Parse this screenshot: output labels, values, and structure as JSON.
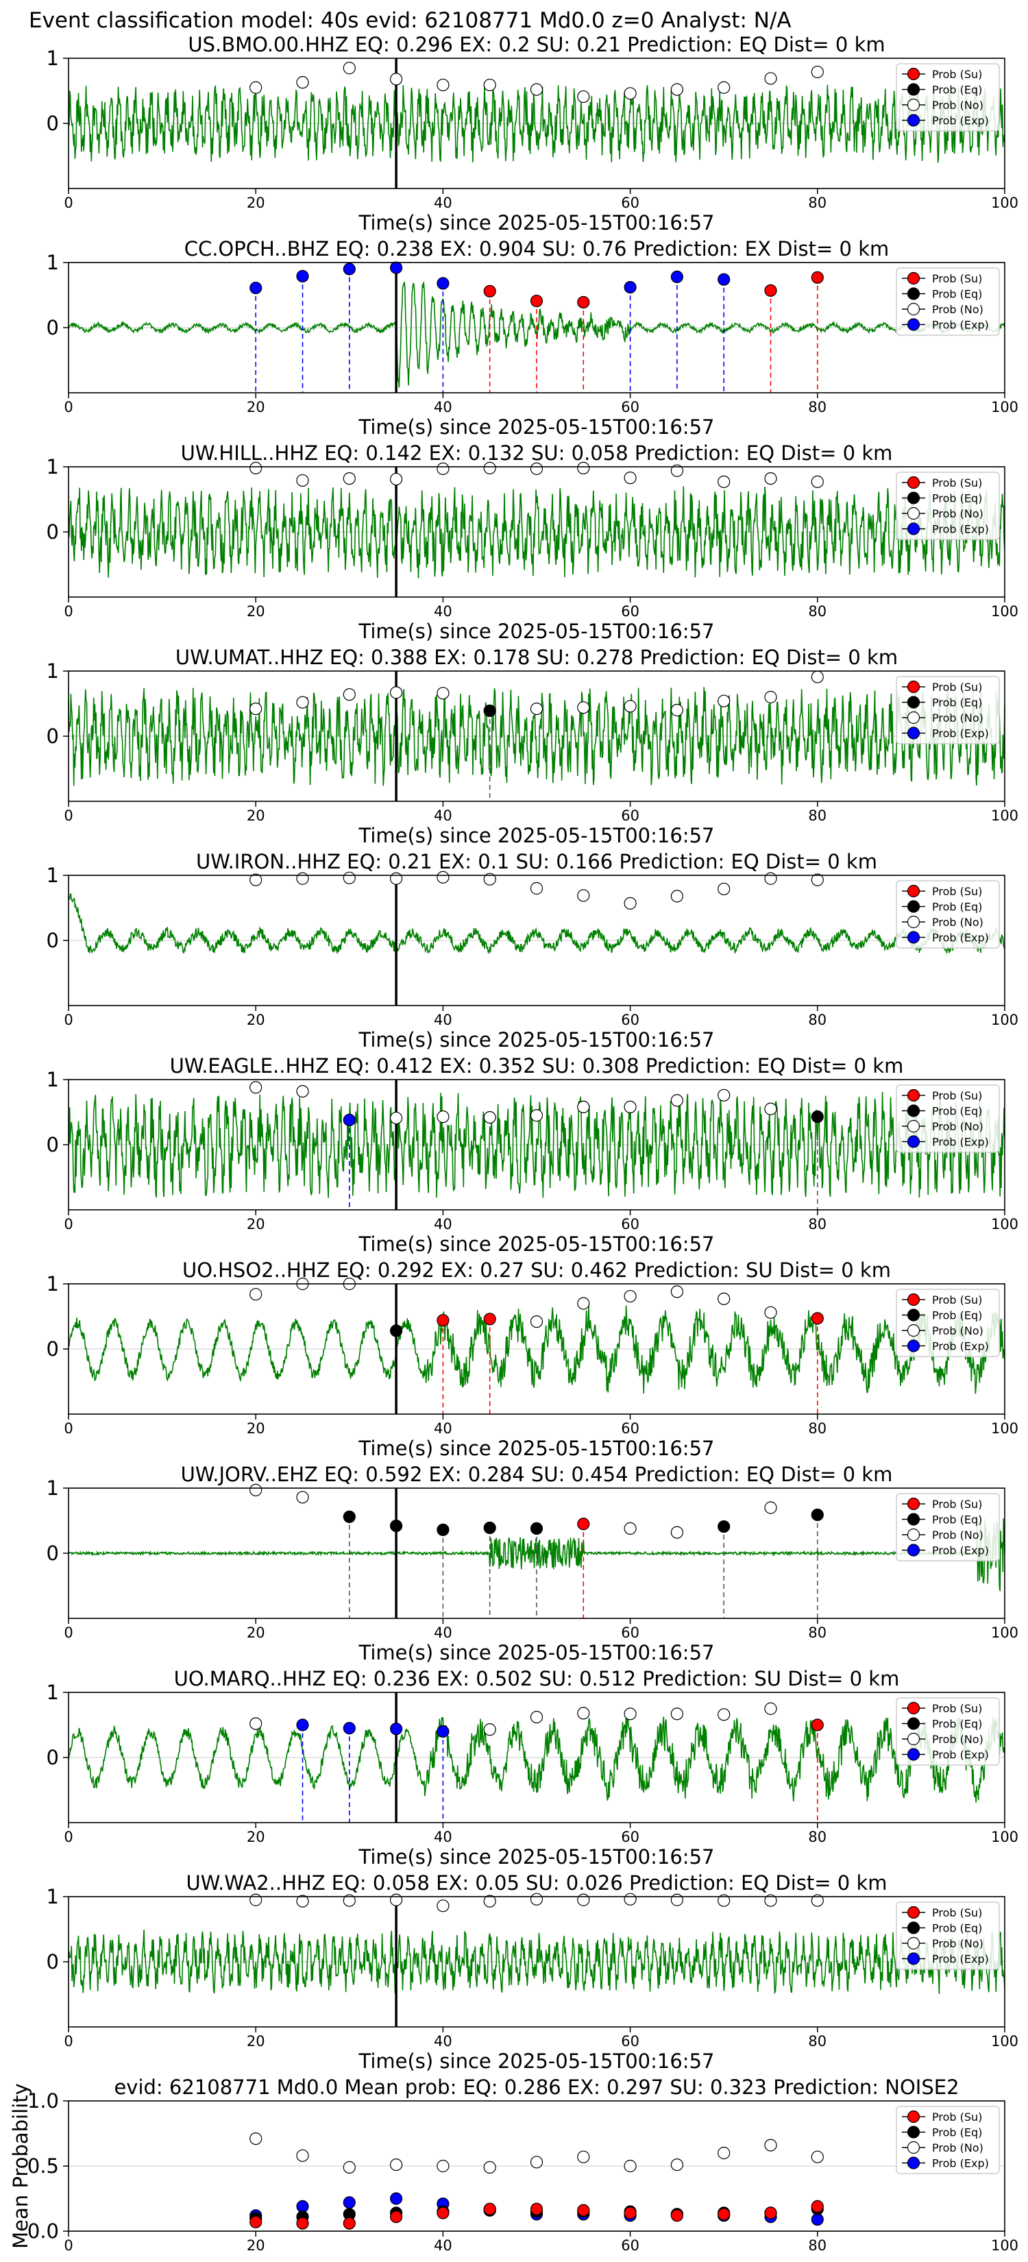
{
  "figure_title": "Event classification model: 40s evid: 62108771 Md0.0 z=0 Analyst: N/A",
  "legend_labels": [
    "Prob (Su)",
    "Prob (Eq)",
    "Prob (No)",
    "Prob (Exp)"
  ],
  "colors": {
    "trace": "#008000",
    "su": "#ff0000",
    "eq": "#000000",
    "no": "#ffffff",
    "exp": "#0000ff",
    "grid": "#dddddd",
    "pick": "#000000"
  },
  "chart_data": [
    {
      "type": "line",
      "station": "US.BMO.00.HHZ",
      "title": "US.BMO.00.HHZ   EQ: 0.296  EX: 0.2  SU: 0.21   Prediction: EQ    Dist= 0 km",
      "xlabel": "Time(s) since 2025-05-15T00:16:57",
      "xlim": [
        0,
        100
      ],
      "ylim": [
        -1,
        1
      ],
      "xticks": [
        0,
        20,
        40,
        60,
        80,
        100
      ],
      "yticks": [
        1,
        0
      ],
      "pick_time": 35,
      "times": [
        20,
        25,
        30,
        35,
        40,
        45,
        50,
        55,
        60,
        65,
        70,
        75,
        80
      ],
      "cls": [
        "no",
        "no",
        "no",
        "no",
        "no",
        "no",
        "no",
        "no",
        "no",
        "no",
        "no",
        "no",
        "no"
      ],
      "probs": [
        0.55,
        0.63,
        0.85,
        0.68,
        0.59,
        0.59,
        0.52,
        0.41,
        0.46,
        0.52,
        0.55,
        0.69,
        0.79
      ],
      "trace_style": "noisy",
      "amp": 0.55,
      "seed": 11
    },
    {
      "type": "line",
      "station": "CC.OPCH..BHZ",
      "title": "CC.OPCH..BHZ   EQ: 0.238  EX: 0.904  SU: 0.76    Prediction: EX    Dist= 0 km",
      "xlabel": "Time(s) since 2025-05-15T00:16:57",
      "xlim": [
        0,
        100
      ],
      "ylim": [
        -1,
        1
      ],
      "xticks": [
        0,
        20,
        40,
        60,
        80,
        100
      ],
      "yticks": [
        1,
        0
      ],
      "pick_time": 35,
      "times": [
        20,
        25,
        30,
        35,
        40,
        45,
        50,
        55,
        60,
        65,
        70,
        75,
        80
      ],
      "cls": [
        "exp",
        "exp",
        "exp",
        "exp",
        "exp",
        "su",
        "su",
        "su",
        "exp",
        "exp",
        "exp",
        "su",
        "su"
      ],
      "probs": [
        0.61,
        0.79,
        0.9,
        0.92,
        0.68,
        0.56,
        0.41,
        0.39,
        0.62,
        0.78,
        0.74,
        0.57,
        0.77
      ],
      "trace_style": "burst",
      "amp": 0.1,
      "burst_start": 35,
      "burst_end": 60,
      "burst_amp": 0.9,
      "seed": 23
    },
    {
      "type": "line",
      "station": "UW.HILL..HHZ",
      "title": "UW.HILL..HHZ   EQ: 0.142  EX: 0.132  SU: 0.058   Prediction: EQ    Dist= 0 km",
      "xlabel": "Time(s) since 2025-05-15T00:16:57",
      "xlim": [
        0,
        100
      ],
      "ylim": [
        -1,
        1
      ],
      "xticks": [
        0,
        20,
        40,
        60,
        80,
        100
      ],
      "yticks": [
        1,
        0
      ],
      "pick_time": 35,
      "times": [
        20,
        25,
        30,
        35,
        40,
        45,
        50,
        55,
        60,
        65,
        70,
        75,
        80
      ],
      "cls": [
        "no",
        "no",
        "no",
        "no",
        "no",
        "no",
        "no",
        "no",
        "no",
        "no",
        "no",
        "no",
        "no"
      ],
      "probs": [
        0.98,
        0.79,
        0.82,
        0.81,
        0.97,
        0.98,
        0.97,
        0.98,
        0.83,
        0.94,
        0.77,
        0.82,
        0.77
      ],
      "trace_style": "noisy",
      "amp": 0.65,
      "seed": 37
    },
    {
      "type": "line",
      "station": "UW.UMAT..HHZ",
      "title": "UW.UMAT..HHZ   EQ: 0.388  EX: 0.178  SU: 0.278   Prediction: EQ    Dist= 0 km",
      "xlabel": "Time(s) since 2025-05-15T00:16:57",
      "xlim": [
        0,
        100
      ],
      "ylim": [
        -1,
        1
      ],
      "xticks": [
        0,
        20,
        40,
        60,
        80,
        100
      ],
      "yticks": [
        1,
        0
      ],
      "pick_time": 35,
      "times": [
        20,
        25,
        30,
        35,
        40,
        45,
        50,
        55,
        60,
        65,
        70,
        75,
        80
      ],
      "cls": [
        "no",
        "no",
        "no",
        "no",
        "no",
        "eq",
        "no",
        "no",
        "no",
        "no",
        "no",
        "no",
        "no"
      ],
      "probs": [
        0.42,
        0.52,
        0.64,
        0.67,
        0.66,
        0.39,
        0.42,
        0.44,
        0.46,
        0.4,
        0.54,
        0.6,
        0.91
      ],
      "trace_style": "noisy",
      "amp": 0.7,
      "seed": 41
    },
    {
      "type": "line",
      "station": "UW.IRON..HHZ",
      "title": "UW.IRON..HHZ   EQ: 0.21  EX: 0.1  SU: 0.166   Prediction: EQ    Dist= 0 km",
      "xlabel": "Time(s) since 2025-05-15T00:16:57",
      "xlim": [
        0,
        100
      ],
      "ylim": [
        -1,
        1
      ],
      "xticks": [
        0,
        20,
        40,
        60,
        80,
        100
      ],
      "yticks": [
        1,
        0
      ],
      "pick_time": 35,
      "times": [
        20,
        25,
        30,
        35,
        40,
        45,
        50,
        55,
        60,
        65,
        70,
        75,
        80
      ],
      "cls": [
        "no",
        "no",
        "no",
        "no",
        "no",
        "no",
        "no",
        "no",
        "no",
        "no",
        "no",
        "no",
        "no"
      ],
      "probs": [
        0.93,
        0.95,
        0.96,
        0.95,
        0.97,
        0.94,
        0.8,
        0.69,
        0.57,
        0.68,
        0.79,
        0.95,
        0.93
      ],
      "trace_style": "quiet",
      "amp": 0.2,
      "seed": 53
    },
    {
      "type": "line",
      "station": "UW.EAGLE..HHZ",
      "title": "UW.EAGLE..HHZ   EQ: 0.412  EX: 0.352  SU: 0.308   Prediction: EQ    Dist= 0 km",
      "xlabel": "Time(s) since 2025-05-15T00:16:57",
      "xlim": [
        0,
        100
      ],
      "ylim": [
        -1,
        1
      ],
      "xticks": [
        0,
        20,
        40,
        60,
        80,
        100
      ],
      "yticks": [
        1,
        0
      ],
      "pick_time": 35,
      "times": [
        20,
        25,
        30,
        35,
        40,
        45,
        50,
        55,
        60,
        65,
        70,
        75,
        80
      ],
      "cls": [
        "no",
        "no",
        "exp",
        "no",
        "no",
        "no",
        "no",
        "no",
        "no",
        "no",
        "no",
        "no",
        "eq"
      ],
      "probs": [
        0.88,
        0.82,
        0.38,
        0.41,
        0.43,
        0.42,
        0.45,
        0.58,
        0.58,
        0.68,
        0.76,
        0.55,
        0.43
      ],
      "trace_style": "noisy",
      "amp": 0.75,
      "seed": 67
    },
    {
      "type": "line",
      "station": "UO.HSO2..HHZ",
      "title": "UO.HSO2..HHZ   EQ: 0.292  EX: 0.27  SU: 0.462   Prediction: SU    Dist= 0 km",
      "xlabel": "Time(s) since 2025-05-15T00:16:57",
      "xlim": [
        0,
        100
      ],
      "ylim": [
        -1,
        1
      ],
      "xticks": [
        0,
        20,
        40,
        60,
        80,
        100
      ],
      "yticks": [
        1,
        0
      ],
      "pick_time": 35,
      "times": [
        20,
        25,
        30,
        35,
        40,
        45,
        50,
        55,
        60,
        65,
        70,
        75,
        80
      ],
      "cls": [
        "no",
        "no",
        "no",
        "eq",
        "su",
        "su",
        "no",
        "no",
        "no",
        "no",
        "no",
        "no",
        "su"
      ],
      "probs": [
        0.84,
        1.0,
        1.0,
        0.28,
        0.44,
        0.46,
        0.42,
        0.7,
        0.81,
        0.88,
        0.77,
        0.56,
        0.47
      ],
      "trace_style": "wave",
      "amp": 0.5,
      "seed": 71
    },
    {
      "type": "line",
      "station": "UW.JORV..EHZ",
      "title": "UW.JORV..EHZ   EQ: 0.592  EX: 0.284  SU: 0.454   Prediction: EQ    Dist= 0 km",
      "xlabel": "Time(s) since 2025-05-15T00:16:57",
      "xlim": [
        0,
        100
      ],
      "ylim": [
        -1,
        1
      ],
      "xticks": [
        0,
        20,
        40,
        60,
        80,
        100
      ],
      "yticks": [
        1,
        0
      ],
      "pick_time": 35,
      "times": [
        20,
        25,
        30,
        35,
        40,
        45,
        50,
        55,
        60,
        65,
        70,
        75,
        80
      ],
      "cls": [
        "no",
        "no",
        "eq",
        "eq",
        "eq",
        "eq",
        "eq",
        "su",
        "no",
        "no",
        "eq",
        "no",
        "eq"
      ],
      "probs": [
        0.97,
        0.86,
        0.56,
        0.42,
        0.36,
        0.39,
        0.38,
        0.45,
        0.38,
        0.32,
        0.41,
        0.7,
        0.59
      ],
      "trace_style": "flat",
      "amp": 0.04,
      "burst_start": 45,
      "burst_end": 55,
      "burst_amp": 0.25,
      "seed": 83
    },
    {
      "type": "line",
      "station": "UO.MARQ..HHZ",
      "title": "UO.MARQ..HHZ   EQ: 0.236  EX: 0.502  SU: 0.512   Prediction: SU    Dist= 0 km",
      "xlabel": "Time(s) since 2025-05-15T00:16:57",
      "xlim": [
        0,
        100
      ],
      "ylim": [
        -1,
        1
      ],
      "xticks": [
        0,
        20,
        40,
        60,
        80,
        100
      ],
      "yticks": [
        1,
        0
      ],
      "pick_time": 35,
      "times": [
        20,
        25,
        30,
        35,
        40,
        45,
        50,
        55,
        60,
        65,
        70,
        75,
        80
      ],
      "cls": [
        "no",
        "exp",
        "exp",
        "exp",
        "exp",
        "no",
        "no",
        "no",
        "no",
        "no",
        "no",
        "no",
        "su"
      ],
      "probs": [
        0.52,
        0.5,
        0.45,
        0.44,
        0.4,
        0.43,
        0.62,
        0.68,
        0.67,
        0.67,
        0.66,
        0.75,
        0.5
      ],
      "trace_style": "wave",
      "amp": 0.5,
      "seed": 97
    },
    {
      "type": "line",
      "station": "UW.WA2..HHZ",
      "title": "UW.WA2..HHZ   EQ: 0.058  EX: 0.05  SU: 0.026   Prediction: EQ    Dist= 0 km",
      "xlabel": "Time(s) since 2025-05-15T00:16:57",
      "xlim": [
        0,
        100
      ],
      "ylim": [
        -1,
        1
      ],
      "xticks": [
        0,
        20,
        40,
        60,
        80,
        100
      ],
      "yticks": [
        1,
        0
      ],
      "pick_time": 35,
      "times": [
        20,
        25,
        30,
        35,
        40,
        45,
        50,
        55,
        60,
        65,
        70,
        75,
        80
      ],
      "cls": [
        "no",
        "no",
        "no",
        "no",
        "no",
        "no",
        "no",
        "no",
        "no",
        "no",
        "no",
        "no",
        "no"
      ],
      "probs": [
        0.95,
        0.93,
        0.94,
        0.95,
        0.86,
        0.93,
        0.96,
        0.95,
        0.96,
        0.95,
        0.94,
        0.94,
        0.94
      ],
      "trace_style": "noisy",
      "amp": 0.45,
      "seed": 101
    },
    {
      "type": "scatter",
      "title": "evid: 62108771  Md0.0   Mean prob:   EQ: 0.286  EX: 0.297  SU: 0.323   Prediction: NOISE2",
      "ylabel": "Mean Probability",
      "xlim": [
        0,
        100
      ],
      "ylim": [
        0,
        1
      ],
      "xticks": [
        0,
        20,
        40,
        60,
        80,
        100
      ],
      "yticks": [
        0.0,
        0.5,
        1.0
      ],
      "x": [
        20,
        25,
        30,
        35,
        40,
        45,
        50,
        55,
        60,
        65,
        70,
        75,
        80
      ],
      "series": [
        {
          "key": "no",
          "values": [
            0.71,
            0.58,
            0.49,
            0.51,
            0.5,
            0.49,
            0.53,
            0.57,
            0.5,
            0.51,
            0.6,
            0.66,
            0.57
          ]
        },
        {
          "key": "exp",
          "values": [
            0.12,
            0.19,
            0.22,
            0.25,
            0.21,
            0.16,
            0.13,
            0.13,
            0.12,
            0.13,
            0.12,
            0.11,
            0.09
          ]
        },
        {
          "key": "eq",
          "values": [
            0.1,
            0.11,
            0.13,
            0.14,
            0.15,
            0.16,
            0.15,
            0.15,
            0.15,
            0.13,
            0.14,
            0.14,
            0.17
          ]
        },
        {
          "key": "su",
          "values": [
            0.07,
            0.06,
            0.06,
            0.11,
            0.14,
            0.17,
            0.17,
            0.16,
            0.14,
            0.12,
            0.13,
            0.14,
            0.19
          ]
        }
      ]
    }
  ]
}
